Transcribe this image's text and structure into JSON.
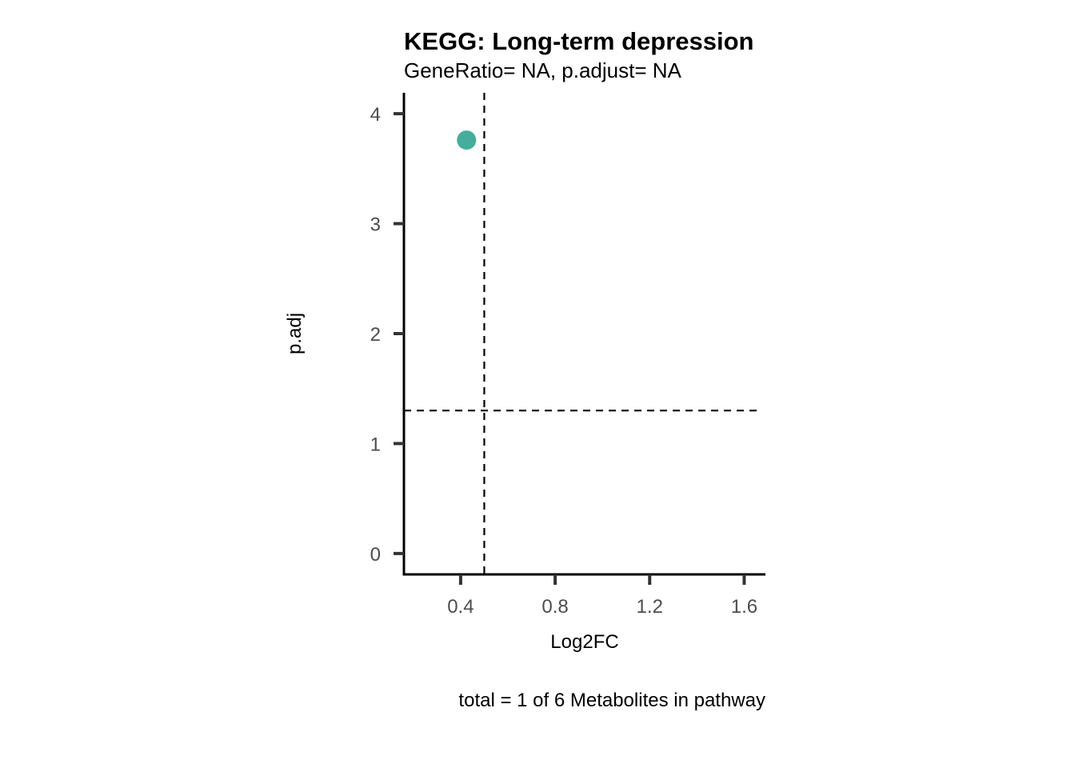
{
  "chart_data": {
    "type": "scatter",
    "title": "KEGG: Long-term depression",
    "subtitle": "GeneRatio= NA, p.adjust= NA",
    "xlabel": "Log2FC",
    "ylabel": "p.adj",
    "caption": "total = 1 of 6 Metabolites in pathway",
    "xlim": [
      0.16,
      1.69
    ],
    "ylim": [
      -0.19,
      4.19
    ],
    "x_ticks": [
      0.4,
      0.8,
      1.2,
      1.6
    ],
    "x_tick_labels": [
      "0.4",
      "0.8",
      "1.2",
      "1.6"
    ],
    "y_ticks": [
      0,
      1,
      2,
      3,
      4
    ],
    "y_tick_labels": [
      "0",
      "1",
      "2",
      "3",
      "4"
    ],
    "points": [
      {
        "x": 0.425,
        "y": 3.76,
        "color": "#45ad9b"
      }
    ],
    "reference_lines": {
      "vertical_x": 0.5,
      "horizontal_y": 1.3
    },
    "grid": false,
    "legend": "none"
  }
}
